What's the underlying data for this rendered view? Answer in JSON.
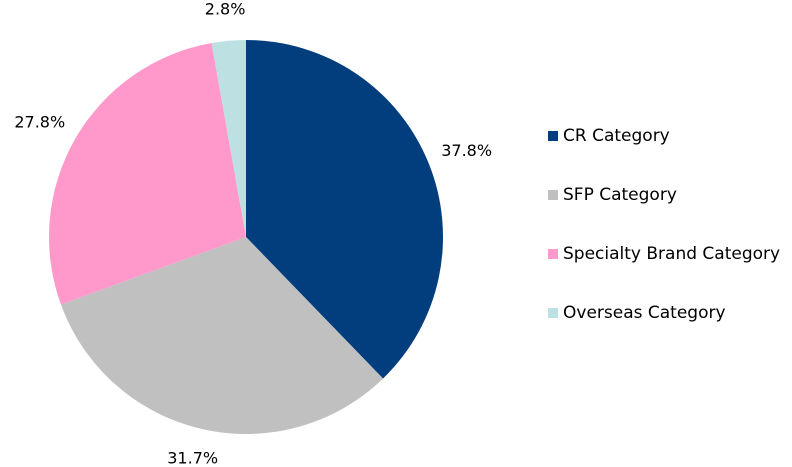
{
  "chart_data": {
    "type": "pie",
    "categories": [
      "CR Category",
      "SFP Category",
      "Specialty Brand Category",
      "Overseas Category"
    ],
    "values": [
      37.8,
      31.7,
      27.8,
      2.8
    ],
    "value_labels": [
      "37.8%",
      "31.7%",
      "27.8%",
      "2.8%"
    ],
    "colors": [
      "#023e7d",
      "#c0c0c0",
      "#ff99cc",
      "#bde0e3"
    ],
    "legend": "right"
  }
}
